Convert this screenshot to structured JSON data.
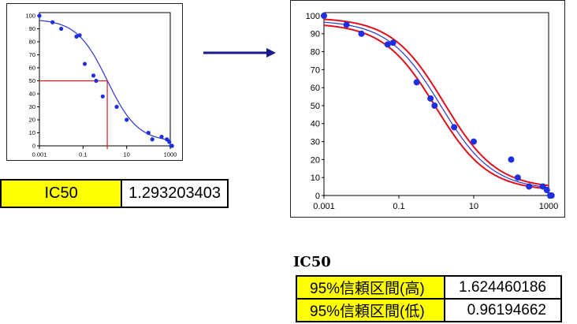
{
  "chart_data": [
    {
      "type": "scatter",
      "x_scale": "log",
      "xlim": [
        0.001,
        1000
      ],
      "ylim": [
        0,
        100
      ],
      "x_ticks": [
        "0.001",
        "0.1",
        "10",
        "1000"
      ],
      "y_ticks": [
        "0",
        "10",
        "20",
        "30",
        "40",
        "50",
        "60",
        "70",
        "80",
        "90",
        "100"
      ],
      "points_x": [
        0.001,
        0.004,
        0.01,
        0.05,
        0.07,
        0.12,
        0.3,
        0.4,
        0.8,
        3.5,
        10,
        100,
        150,
        400,
        700,
        900,
        1100,
        1200
      ],
      "points_y": [
        100,
        95,
        90,
        84,
        85,
        63,
        54,
        50,
        38,
        30,
        20,
        10,
        5,
        7,
        5,
        3,
        0,
        0
      ],
      "fit_curve": {
        "top": 97.5,
        "bottom": 3,
        "ic50": 1.293203403,
        "hill": 0.62
      },
      "ic50_marker": {
        "x": 1.293203403,
        "y": 50
      }
    },
    {
      "type": "scatter",
      "x_scale": "log",
      "xlim": [
        0.001,
        1000
      ],
      "ylim": [
        0,
        100
      ],
      "x_ticks": [
        "0.001",
        "0.1",
        "10",
        "1000"
      ],
      "y_ticks": [
        "0",
        "10",
        "20",
        "30",
        "40",
        "50",
        "60",
        "70",
        "80",
        "90",
        "100"
      ],
      "points_x": [
        0.001,
        0.004,
        0.01,
        0.05,
        0.07,
        0.3,
        0.7,
        0.9,
        3,
        10,
        100,
        150,
        300,
        700,
        900,
        1100,
        1200
      ],
      "points_y": [
        100,
        95,
        90,
        84,
        85,
        63,
        54,
        50,
        38,
        30,
        20,
        10,
        5,
        5,
        3,
        0,
        0
      ],
      "fit_curve": {
        "top": 97.5,
        "bottom": 3,
        "ic50": 1.293203403,
        "hill": 0.62
      },
      "ci_curves": [
        {
          "top": 96,
          "bottom": 2.5,
          "ic50": 0.96194662,
          "hill": 0.62
        },
        {
          "top": 99,
          "bottom": 3.8,
          "ic50": 1.624460186,
          "hill": 0.62
        }
      ]
    }
  ],
  "ic50_row": {
    "label": "IC50",
    "value": "1.293203403"
  },
  "ci_section": {
    "title": "IC50",
    "rows": [
      {
        "label": "95%信頼区間(高)",
        "value": "1.624460186"
      },
      {
        "label": "95%信頼区間(低)",
        "value": "0.96194662"
      }
    ]
  },
  "colors": {
    "points": "#1f2fe0",
    "fit_line": "#2a35d8",
    "ci_lines": "#e0101a",
    "marker": "#e01a1a",
    "arrow": "#1a1a8c",
    "highlight": "#ffff00"
  }
}
